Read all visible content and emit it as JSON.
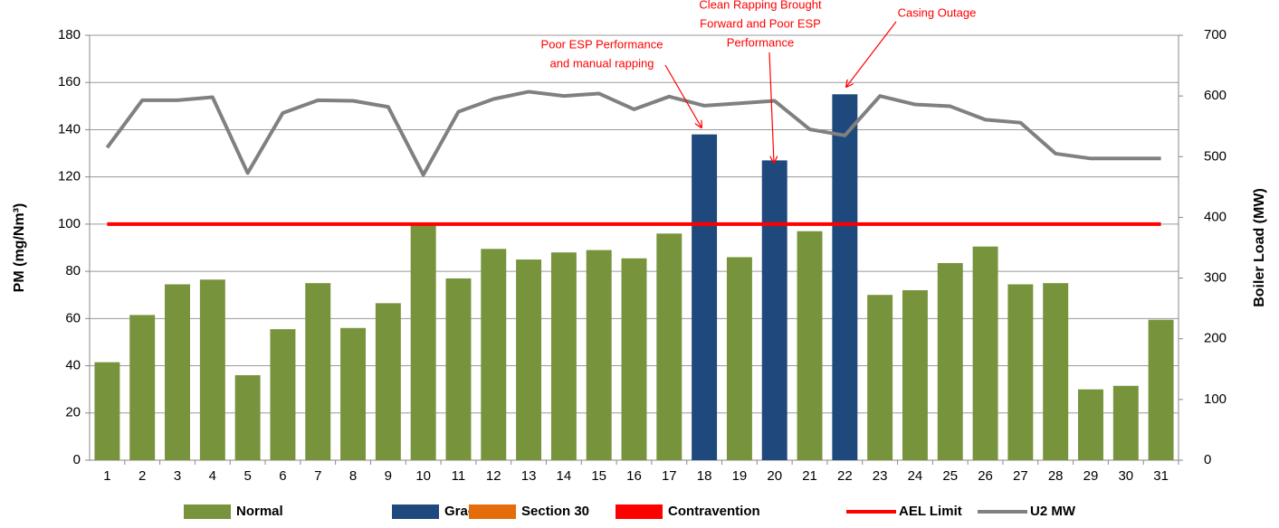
{
  "chart_data": {
    "type": "bar",
    "y_label": "PM (mg/Nm³)",
    "y2_label": "Boiler Load (MW)",
    "categories": [
      "1",
      "2",
      "3",
      "4",
      "5",
      "6",
      "7",
      "8",
      "9",
      "10",
      "11",
      "12",
      "13",
      "14",
      "15",
      "16",
      "17",
      "18",
      "19",
      "20",
      "21",
      "22",
      "23",
      "24",
      "25",
      "26",
      "27",
      "28",
      "29",
      "30",
      "31"
    ],
    "series": [
      {
        "name": "Normal",
        "type": "bar",
        "color": "#77933c",
        "values": [
          41.5,
          61.5,
          74.5,
          76.5,
          36,
          55.5,
          75,
          56,
          66.5,
          100,
          77,
          89.5,
          85,
          88,
          89,
          85.5,
          96,
          null,
          86,
          null,
          97,
          null,
          70,
          72,
          83.5,
          90.5,
          74.5,
          75,
          30,
          31.5,
          59.5
        ]
      },
      {
        "name": "Grace",
        "type": "bar",
        "color": "#1f497d",
        "values": [
          null,
          null,
          null,
          null,
          null,
          null,
          null,
          null,
          null,
          null,
          null,
          null,
          null,
          null,
          null,
          null,
          null,
          138,
          null,
          127,
          null,
          155,
          null,
          null,
          null,
          null,
          null,
          null,
          null,
          null,
          null
        ]
      },
      {
        "name": "Section 30",
        "type": "bar",
        "color": "#e46c0a",
        "values": [
          null,
          null,
          null,
          null,
          null,
          null,
          null,
          null,
          null,
          null,
          null,
          null,
          null,
          null,
          null,
          null,
          null,
          null,
          null,
          null,
          null,
          null,
          null,
          null,
          null,
          null,
          null,
          null,
          null,
          null,
          null
        ]
      },
      {
        "name": "Contravention",
        "type": "bar",
        "color": "#ff0000",
        "values": [
          null,
          null,
          null,
          null,
          null,
          null,
          null,
          null,
          null,
          null,
          null,
          null,
          null,
          null,
          null,
          null,
          null,
          null,
          null,
          null,
          null,
          null,
          null,
          null,
          null,
          null,
          null,
          null,
          null,
          null,
          null
        ]
      },
      {
        "name": "AEL Limit",
        "type": "line",
        "color": "#ff0000",
        "values": [
          100,
          100,
          100,
          100,
          100,
          100,
          100,
          100,
          100,
          100,
          100,
          100,
          100,
          100,
          100,
          100,
          100,
          100,
          100,
          100,
          100,
          100,
          100,
          100,
          100,
          100,
          100,
          100,
          100,
          100,
          100
        ]
      },
      {
        "name": "U2 MW",
        "type": "line",
        "axis": "y2",
        "color": "#808080",
        "values": [
          515,
          593,
          593,
          598,
          473,
          572,
          593,
          592,
          582,
          470,
          574,
          595,
          607,
          600,
          604,
          578,
          599,
          584,
          588,
          592,
          545,
          535,
          600,
          586,
          583,
          561,
          556,
          505,
          497,
          497,
          497
        ]
      }
    ],
    "ylim": [
      0,
      180
    ],
    "yticks": [
      0,
      20,
      40,
      60,
      80,
      100,
      120,
      140,
      160,
      180
    ],
    "y2lim": [
      0,
      700
    ],
    "y2ticks": [
      0,
      100,
      200,
      300,
      400,
      500,
      600,
      700
    ],
    "grid": true,
    "legend": "bottom",
    "annotations": [
      {
        "text": [
          "Poor ESP Performance",
          "and manual rapping"
        ]
      },
      {
        "text": [
          "Clean Rapping Brought",
          "Forward and Poor ESP",
          "Performance"
        ]
      },
      {
        "text": [
          "Casing Outage"
        ]
      }
    ]
  }
}
